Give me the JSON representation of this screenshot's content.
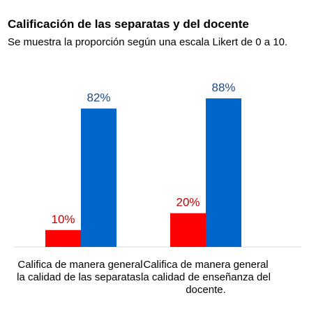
{
  "header": {
    "title": "Calificación de las separatas y del docente",
    "subtitle": "Se muestra la proporción según una escala Likert de 0 a 10."
  },
  "chart_data": {
    "type": "bar",
    "title": "Calificación de las separatas y del docente",
    "subtitle": "Se muestra la proporción según una escala Likert de 0 a 10.",
    "categories": [
      "Califica de manera general la calidad de las separatas.",
      "Califica de manera general la calidad de enseñanza del docente."
    ],
    "series": [
      {
        "values": [
          10,
          20
        ],
        "labels": [
          "10%",
          "20%"
        ],
        "color": "#ff0000",
        "label_color": "#c00000"
      },
      {
        "values": [
          82,
          88
        ],
        "labels": [
          "82%",
          "88%"
        ],
        "color": "#0066cc",
        "label_color": "#1f497d"
      }
    ],
    "ylim": [
      0,
      100
    ],
    "grid": false,
    "legend": "none"
  }
}
